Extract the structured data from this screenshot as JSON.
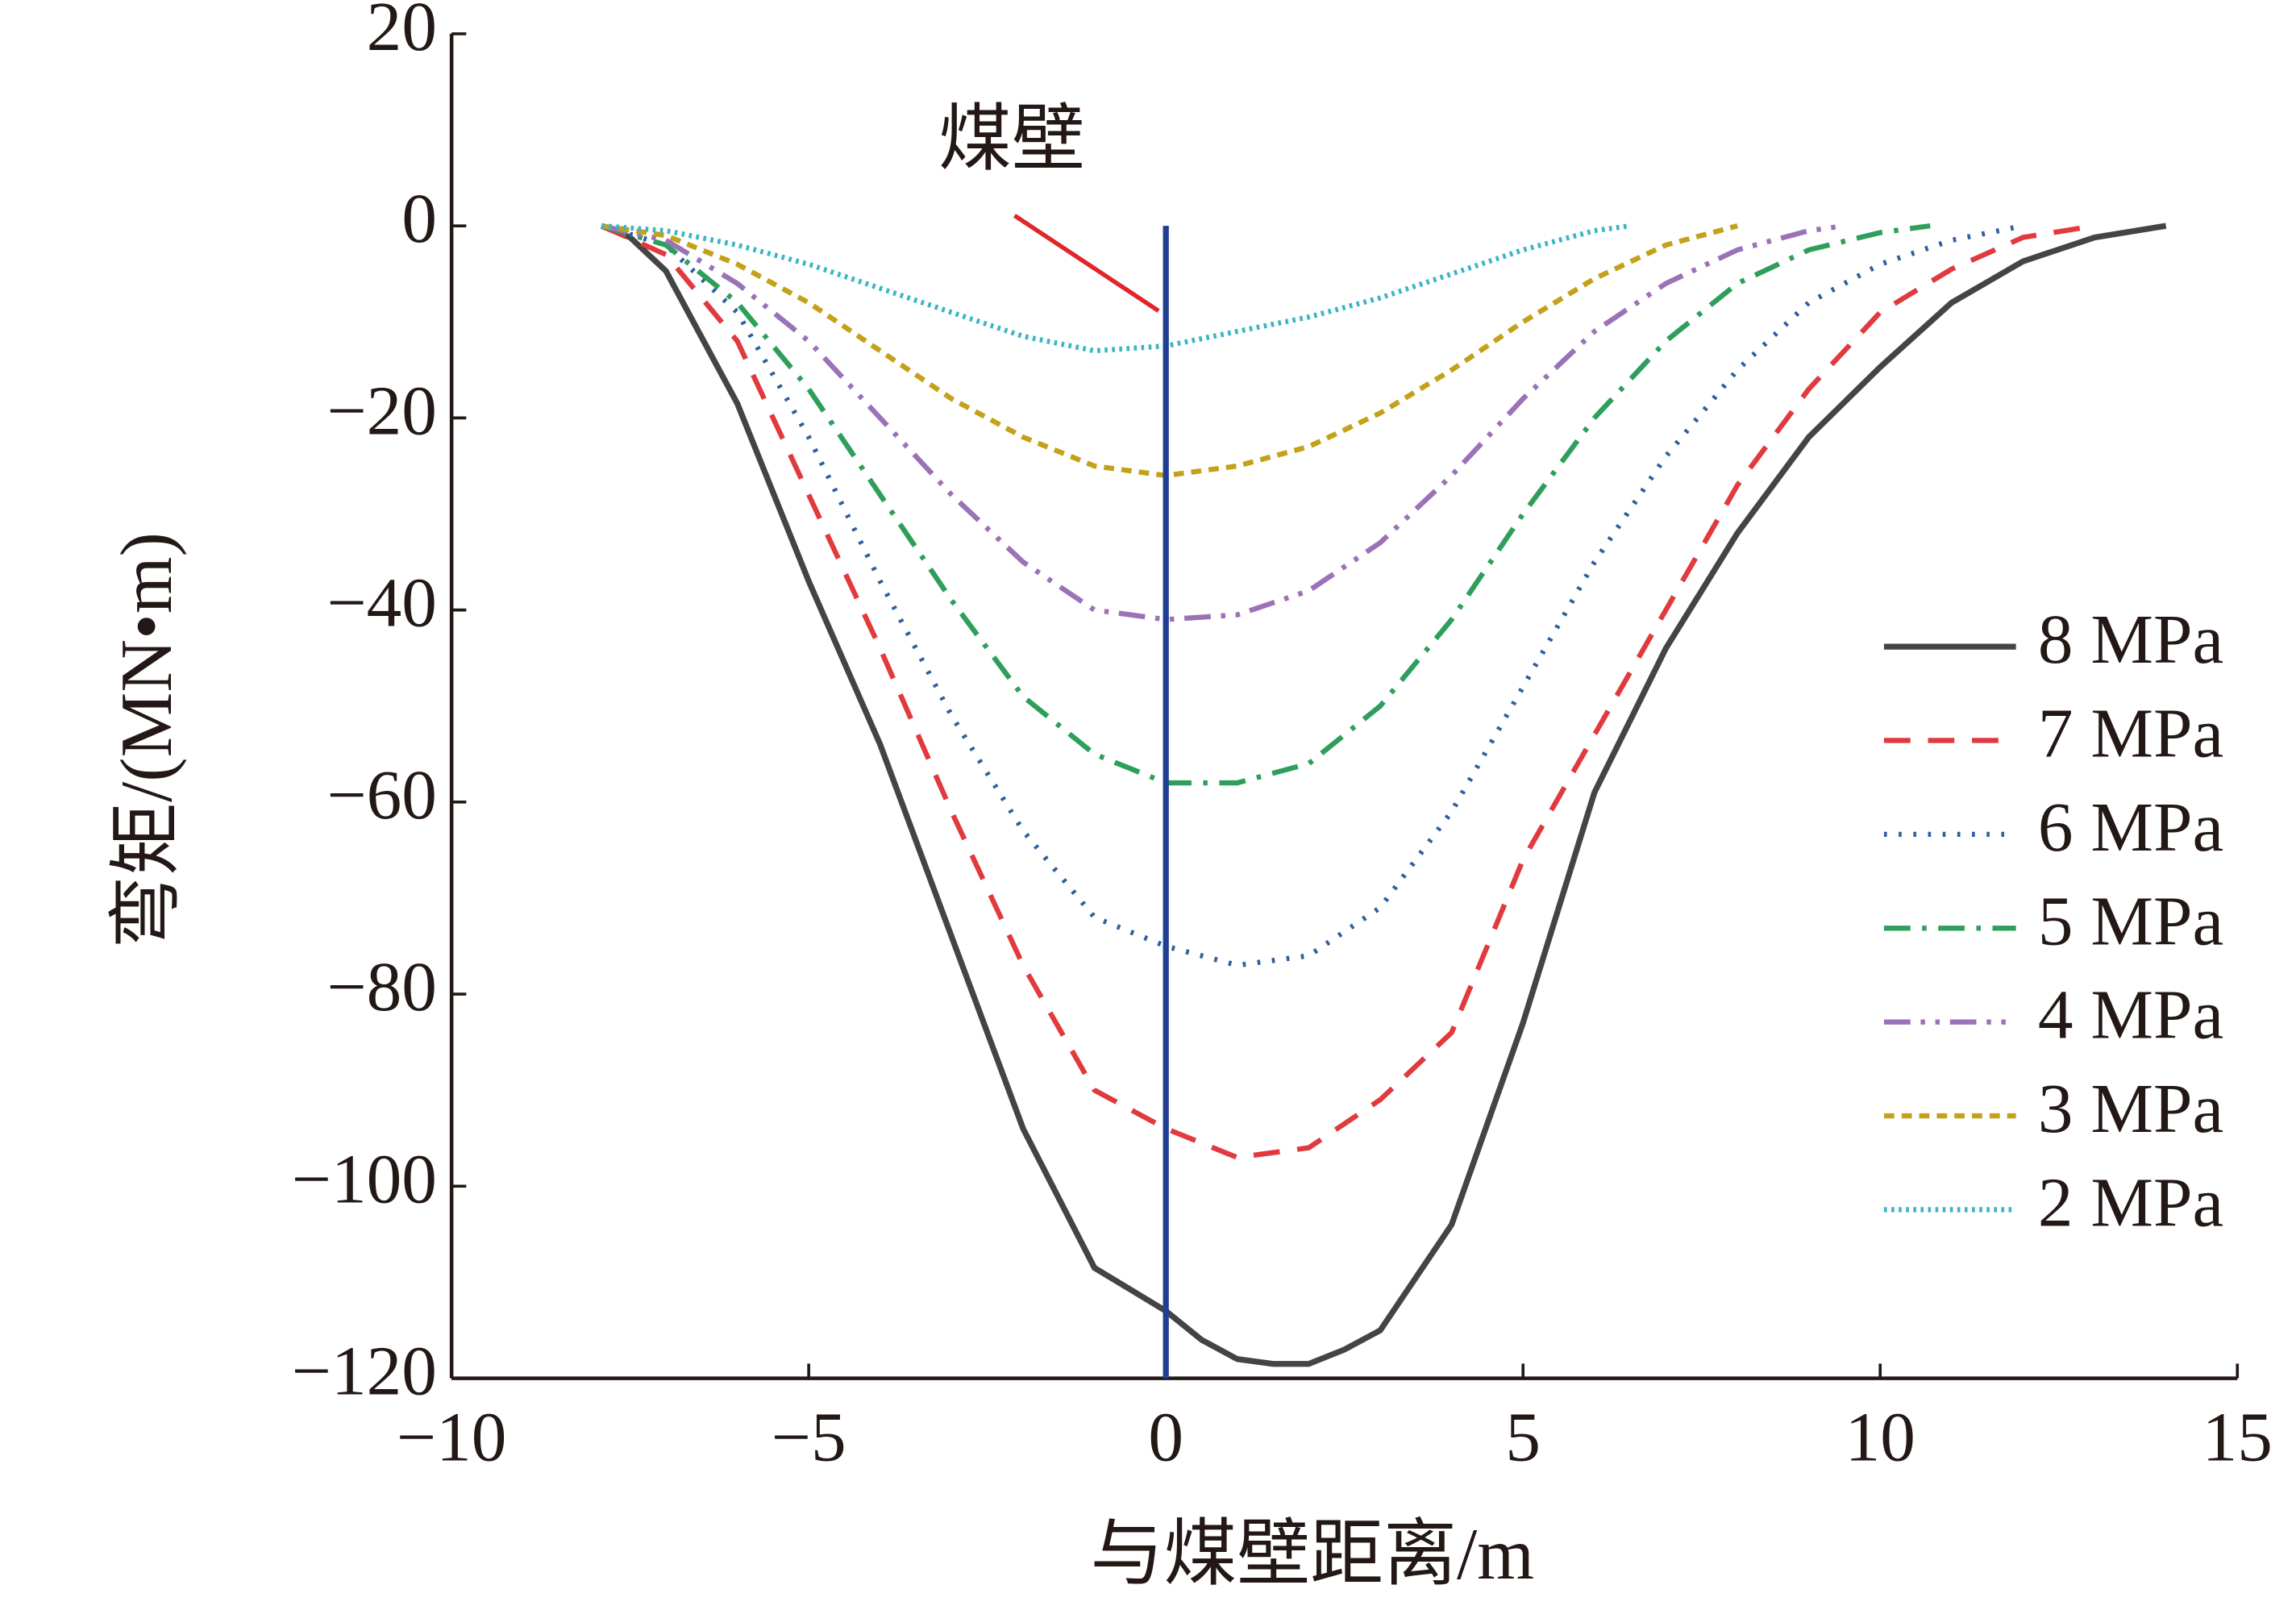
{
  "chart_data": {
    "type": "line",
    "xlabel": "与煤壁距离/m",
    "ylabel": "弯矩/(MN•m)",
    "xlim": [
      -10,
      15
    ],
    "ylim": [
      -120,
      20
    ],
    "xticks": [
      {
        "value": -10,
        "label": "−10"
      },
      {
        "value": -5,
        "label": "−5"
      },
      0,
      5,
      10,
      15
    ],
    "yticks": [
      {
        "value": -120,
        "label": "−120"
      },
      {
        "value": -100,
        "label": "−100"
      },
      {
        "value": -80,
        "label": "−80"
      },
      {
        "value": -60,
        "label": "−60"
      },
      {
        "value": -40,
        "label": "−40"
      },
      {
        "value": -20,
        "label": "−20"
      },
      0,
      20
    ],
    "legend": "right",
    "annotation": {
      "text": "煤壁",
      "x": 0,
      "from": 0,
      "color": "#1f3f95",
      "pointer_color": "#e0262b"
    },
    "series": [
      {
        "name": "8 MPa",
        "color": "#444444",
        "dash": "solid",
        "x": [
          -7.9,
          -7.5,
          -7,
          -6,
          -5,
          -4,
          -3,
          -2,
          -1,
          0,
          0.5,
          1,
          1.5,
          2,
          2.5,
          3,
          4,
          5,
          6,
          7,
          8,
          9,
          10,
          11,
          12,
          13,
          14
        ],
        "values": [
          0,
          -1.2,
          -4.7,
          -18.5,
          -37,
          -54,
          -74,
          -94,
          -108.5,
          -113,
          -116,
          -118,
          -118.5,
          -118.5,
          -117,
          -115,
          -104,
          -83,
          -59,
          -44,
          -32,
          -22,
          -14.7,
          -8,
          -3.7,
          -1.2,
          0
        ]
      },
      {
        "name": "7 MPa",
        "color": "#e03a3e",
        "dash": "dashed",
        "x": [
          -7.9,
          -7,
          -6,
          -5,
          -4,
          -3,
          -2,
          -1,
          0,
          1,
          2,
          3,
          4,
          5,
          6,
          7,
          8,
          9,
          10,
          11,
          12,
          13
        ],
        "values": [
          0,
          -3,
          -12,
          -28,
          -44,
          -61,
          -77,
          -90,
          -94,
          -97,
          -96,
          -91,
          -84,
          -66,
          -53,
          -40,
          -27,
          -17,
          -9,
          -4.5,
          -1.2,
          0
        ]
      },
      {
        "name": "6 MPa",
        "color": "#2e5fa0",
        "dash": "dotted",
        "x": [
          -7.9,
          -7,
          -6,
          -5,
          -4,
          -3,
          -2,
          -1,
          0,
          1,
          2,
          3,
          4,
          5,
          6,
          7,
          8,
          9,
          10,
          11,
          12
        ],
        "values": [
          0,
          -2,
          -9,
          -22,
          -37,
          -51,
          -63,
          -72,
          -75,
          -77,
          -76,
          -71,
          -61,
          -48,
          -35,
          -24,
          -15,
          -8,
          -4,
          -1.5,
          0
        ]
      },
      {
        "name": "5 MPa",
        "color": "#2e9e5b",
        "dash": "dashdot",
        "x": [
          -7.9,
          -7,
          -6,
          -5,
          -4,
          -3,
          -2,
          -1,
          0,
          1,
          2,
          3,
          4,
          5,
          6,
          7,
          8,
          9,
          10,
          10.7
        ],
        "values": [
          0,
          -2,
          -8,
          -17,
          -28,
          -39,
          -49,
          -55,
          -58,
          -58,
          -56,
          -50,
          -41,
          -30,
          -20,
          -12,
          -6,
          -2.5,
          -0.7,
          0
        ]
      },
      {
        "name": "4 MPa",
        "color": "#9b72b8",
        "dash": "dashdotdot",
        "x": [
          -7.9,
          -7,
          -6,
          -5,
          -4,
          -3,
          -2,
          -1,
          0,
          1,
          2,
          3,
          4,
          5,
          6,
          7,
          8,
          9,
          9.5
        ],
        "values": [
          0,
          -1.5,
          -6,
          -12,
          -20,
          -28,
          -35,
          -40,
          -41,
          -40.5,
          -38,
          -33,
          -26,
          -18,
          -11,
          -6,
          -2.5,
          -0.5,
          0
        ]
      },
      {
        "name": "3 MPa",
        "color": "#c4a11a",
        "dash": "shortdash",
        "x": [
          -7.9,
          -7,
          -6,
          -5,
          -4,
          -3,
          -2,
          -1,
          0,
          1,
          2,
          3,
          4,
          5,
          6,
          7,
          8
        ],
        "values": [
          0,
          -1,
          -4,
          -8,
          -13,
          -18,
          -22,
          -25,
          -26,
          -25,
          -23,
          -19.5,
          -15,
          -10,
          -5.5,
          -2,
          0
        ]
      },
      {
        "name": "2 MPa",
        "color": "#3bb5c4",
        "dash": "densedot",
        "x": [
          -7.9,
          -7,
          -6,
          -5,
          -4,
          -3,
          -2,
          -1,
          0,
          1,
          2,
          3,
          4,
          5,
          6,
          6.5
        ],
        "values": [
          0,
          -0.5,
          -2,
          -4,
          -6.5,
          -9,
          -11.5,
          -13,
          -12.5,
          -11,
          -9.5,
          -7.5,
          -5,
          -2.5,
          -0.5,
          0
        ]
      }
    ]
  }
}
